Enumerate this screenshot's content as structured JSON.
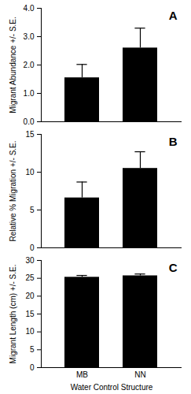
{
  "chart_data": [
    {
      "type": "bar",
      "title": "A",
      "categories": [
        "MB",
        "NN"
      ],
      "values": [
        1.55,
        2.6
      ],
      "errors": [
        0.47,
        0.7
      ],
      "color": "#000000",
      "y_label": "Migrant Abundance +/- S.E.",
      "ylim": [
        0,
        4
      ],
      "yticks": [
        0,
        1,
        2,
        3,
        4
      ],
      "tick_labels": "y"
    },
    {
      "type": "bar",
      "title": "B",
      "categories": [
        "MB",
        "NN"
      ],
      "values": [
        6.6,
        10.5
      ],
      "errors": [
        2.1,
        2.2
      ],
      "color": "#000000",
      "y_label": "Relative % Migration +/- S.E.",
      "ylim": [
        0,
        15
      ],
      "yticks": [
        0,
        5,
        10,
        15
      ],
      "tick_labels": "y"
    },
    {
      "type": "bar",
      "title": "C",
      "categories": [
        "MB",
        "NN"
      ],
      "values": [
        25.3,
        25.7
      ],
      "errors": [
        0.5,
        0.5
      ],
      "color": "#000000",
      "x_label": "Water Control Structure",
      "y_label": "Migrant Length (cm) +/- S.E.",
      "ylim": [
        0,
        30
      ],
      "yticks": [
        0,
        5,
        10,
        15,
        20,
        25,
        30
      ]
    }
  ]
}
